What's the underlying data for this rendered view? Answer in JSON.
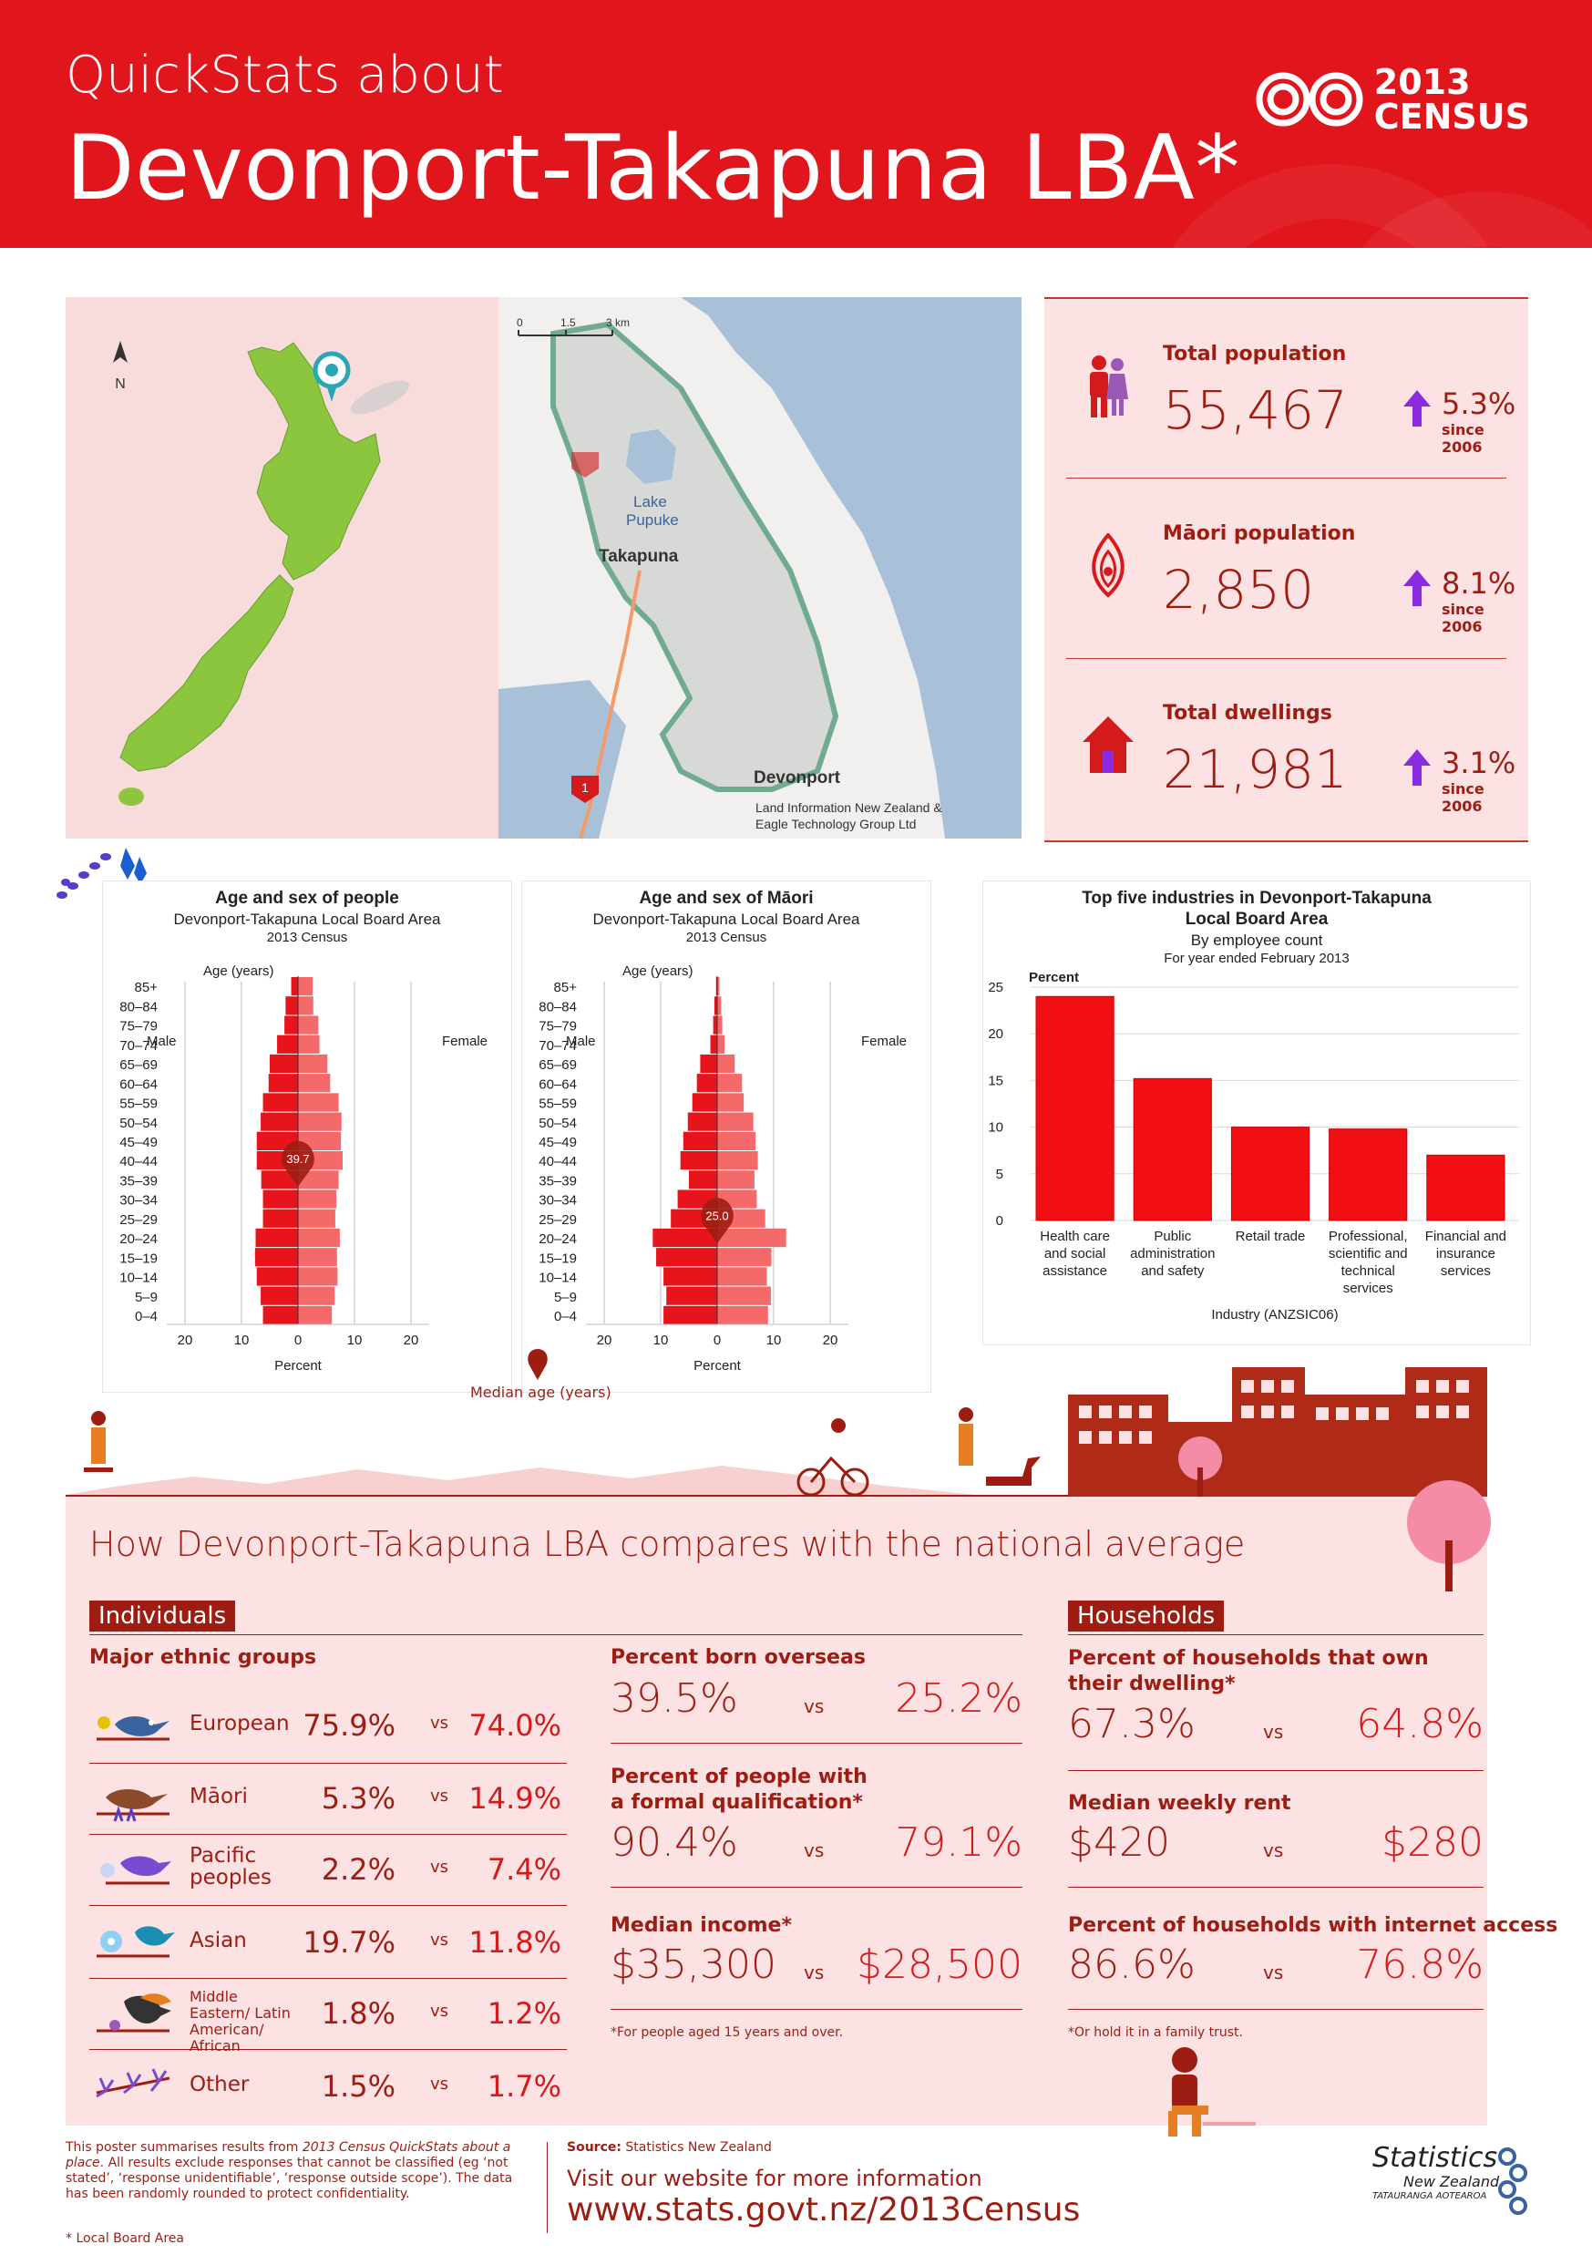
{
  "header": {
    "title_small": "QuickStats about",
    "title_large": "Devonport-Takapuna LBA*",
    "logo_text_line1": "2013",
    "logo_text_line2": "CENSUS"
  },
  "map": {
    "north_label": "N",
    "scale_0": "0",
    "scale_1": "1.5",
    "scale_2": "3 km",
    "lake_label_1": "Lake",
    "lake_label_2": "Pupuke",
    "place_1": "Takapuna",
    "place_2": "Devonport",
    "road_label": "1",
    "credit_1": "Land Information New Zealand &",
    "credit_2": "Eagle Technology Group Ltd"
  },
  "headline_stats": [
    {
      "label": "Total population",
      "value": "55,467",
      "change": "5.3%",
      "since": "since 2006",
      "icon": "people-icon"
    },
    {
      "label": "Māori population",
      "value": "2,850",
      "change": "8.1%",
      "since": "since 2006",
      "icon": "maori-koru-icon"
    },
    {
      "label": "Total dwellings",
      "value": "21,981",
      "change": "3.1%",
      "since": "since 2006",
      "icon": "house-icon"
    }
  ],
  "colors": {
    "brand_red": "#e1161c",
    "dark_red": "#9d1d12",
    "pink_bg": "#fce2e2",
    "male_bar": "#e8141c",
    "female_bar": "#f46a6a",
    "purple_arrow": "#8a2be2"
  },
  "chart_data": [
    {
      "type": "bar",
      "orientation": "horizontal-pyramid",
      "title": "Age and sex of people",
      "subtitle": "Devonport-Takapuna  Local Board Area",
      "subtitle2": "2013 Census",
      "ylabel": "Age (years)",
      "xlabel": "Percent",
      "left_label": "Male",
      "right_label": "Female",
      "categories": [
        "0–4",
        "5–9",
        "10–14",
        "15–19",
        "20–24",
        "25–29",
        "30–34",
        "35–39",
        "40–44",
        "45–49",
        "50–54",
        "55–59",
        "60–64",
        "65–69",
        "70–74",
        "75–79",
        "80–84",
        "85+"
      ],
      "series": [
        {
          "name": "Male",
          "values": [
            6.2,
            6.6,
            7.3,
            7.6,
            7.5,
            6.2,
            6.2,
            6.5,
            7.3,
            7.3,
            6.6,
            6.2,
            5.2,
            5.0,
            3.7,
            2.4,
            2.2,
            1.2
          ]
        },
        {
          "name": "Female",
          "values": [
            6.0,
            6.5,
            7.0,
            6.9,
            7.4,
            6.6,
            6.8,
            7.2,
            7.9,
            7.6,
            7.7,
            7.2,
            5.7,
            5.2,
            3.8,
            3.6,
            2.7,
            2.6
          ]
        }
      ],
      "xlim": [
        -20,
        20
      ],
      "xticks": [
        "20",
        "10",
        "0",
        "10",
        "20"
      ],
      "median_age": "39.7"
    },
    {
      "type": "bar",
      "orientation": "horizontal-pyramid",
      "title": "Age and sex of Māori",
      "subtitle": "Devonport-Takapuna Local Board Area",
      "subtitle2": "2013 Census",
      "ylabel": "Age (years)",
      "xlabel": "Percent",
      "left_label": "Male",
      "right_label": "Female",
      "categories": [
        "0–4",
        "5–9",
        "10–14",
        "15–19",
        "20–24",
        "25–29",
        "30–34",
        "35–39",
        "40–44",
        "45–49",
        "50–54",
        "55–59",
        "60–64",
        "65–69",
        "70–74",
        "75–79",
        "80–84",
        "85+"
      ],
      "series": [
        {
          "name": "Male",
          "values": [
            9.5,
            9.0,
            9.5,
            10.8,
            11.4,
            8.2,
            7.0,
            5.0,
            6.5,
            6.0,
            5.2,
            4.4,
            3.6,
            3.0,
            1.2,
            0.7,
            0.5,
            0.2
          ]
        },
        {
          "name": "Female",
          "values": [
            9.0,
            9.5,
            8.8,
            9.6,
            12.2,
            8.5,
            7.0,
            6.6,
            7.2,
            6.8,
            6.4,
            4.7,
            4.4,
            3.1,
            1.3,
            0.9,
            0.7,
            0.4
          ]
        }
      ],
      "xlim": [
        -20,
        20
      ],
      "xticks": [
        "20",
        "10",
        "0",
        "10",
        "20"
      ],
      "median_age": "25.0"
    },
    {
      "type": "bar",
      "title": "Top five industries in Devonport-Takapuna",
      "title_line2": "Local Board Area",
      "subtitle": "By employee count",
      "subtitle2": "For year ended February 2013",
      "ylabel": "Percent",
      "xlabel": "Industry (ANZSIC06)",
      "ylim": [
        0,
        25
      ],
      "yticks": [
        "0",
        "5",
        "10",
        "15",
        "20",
        "25"
      ],
      "categories": [
        [
          "Health care",
          "and social",
          "assistance"
        ],
        [
          "Public",
          "administration",
          "and safety"
        ],
        [
          "Retail trade"
        ],
        [
          "Professional,",
          "scientific and",
          "technical",
          "services"
        ],
        [
          "Financial and",
          "insurance",
          "services"
        ]
      ],
      "values": [
        24.0,
        15.2,
        10.0,
        9.8,
        7.0
      ]
    }
  ],
  "median_legend": "Median age (years)",
  "compare": {
    "title": "How Devonport-Takapuna LBA compares with the national average",
    "individuals_tag": "Individuals",
    "households_tag": "Households",
    "ethnic_heading": "Major ethnic groups",
    "vs": "vs",
    "ethnic_groups": [
      {
        "label": "European",
        "local": "75.9%",
        "national": "74.0%",
        "icon": "bird-european-icon"
      },
      {
        "label": "Māori",
        "local": "5.3%",
        "national": "14.9%",
        "icon": "bird-maori-icon"
      },
      {
        "label": "Pacific peoples",
        "local": "2.2%",
        "national": "7.4%",
        "icon": "bird-pacific-icon"
      },
      {
        "label": "Asian",
        "local": "19.7%",
        "national": "11.8%",
        "icon": "bird-asian-icon"
      },
      {
        "label": "Middle Eastern/ Latin American/ African",
        "local": "1.8%",
        "national": "1.2%",
        "icon": "bird-melaa-icon"
      },
      {
        "label": "Other",
        "local": "1.5%",
        "national": "1.7%",
        "icon": "flower-other-icon"
      }
    ],
    "middle": [
      {
        "heading": "Percent born overseas",
        "local": "39.5%",
        "national": "25.2%"
      },
      {
        "heading": "Percent of people with a formal qualification*",
        "local": "90.4%",
        "national": "79.1%"
      },
      {
        "heading": "Median income*",
        "local": "$35,300",
        "national": "$28,500"
      }
    ],
    "middle_note": "*For people aged 15 years and over.",
    "households": [
      {
        "heading": "Percent of households that own their dwelling*",
        "local": "67.3%",
        "national": "64.8%"
      },
      {
        "heading": "Median weekly rent",
        "local": "$420",
        "national": "$280"
      },
      {
        "heading": "Percent of households with internet access",
        "local": "86.6%",
        "national": "76.8%"
      }
    ],
    "households_note": "*Or hold it in a family trust."
  },
  "footer": {
    "note_1": "This poster summarises results from ",
    "note_italic": "2013 Census QuickStats about a place",
    "note_2": ". All results exclude responses that cannot be classified (eg ‘not stated’, ‘response unidentifiable’, ‘response outside scope’). The data has been randomly rounded to protect confidentiality.",
    "lba_note": "* Local Board Area",
    "source_label": "Source:",
    "source_value": "Statistics New Zealand",
    "visit": "Visit our website for more information",
    "url": "www.stats.govt.nz/2013Census",
    "logo_line1": "Statistics",
    "logo_line2": "New Zealand",
    "logo_line3": "TATAURANGA AOTEAROA"
  }
}
